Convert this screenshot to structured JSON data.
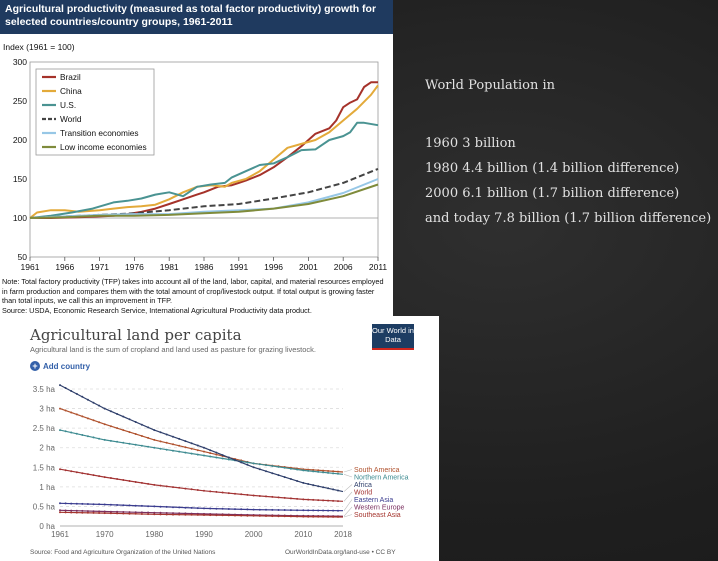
{
  "population": {
    "heading": "World Population in",
    "lines": [
      "1960 3 billion",
      "1980 4.4 billion (1.4 billion difference)",
      "2000 6.1 billion (1.7 billion difference)",
      "and today 7.8 billion (1.7 billion difference)"
    ]
  },
  "chart1": {
    "title": "Agricultural productivity (measured as total factor productivity) growth for selected countries/country groups, 1961-2011",
    "note": "Note: Total factory productivity (TFP) takes into account all of the land, labor, capital, and material resources employed in farm production and compares them with the total amount of crop/livestock output. If total output is growing faster than total inputs, we call this an improvement in TFP.",
    "source": "Source: USDA, Economic Research Service, International Agricultural Productivity data product."
  },
  "chart2": {
    "add_country": "Add country",
    "logo": "Our World in Data",
    "source": "Source: Food and Agriculture Organization of the United Nations",
    "credit": "OurWorldInData.org/land-use • CC BY"
  },
  "chart_data": [
    {
      "type": "line",
      "title": "Agricultural productivity (measured as total factor productivity) growth for selected countries/country groups, 1961-2011",
      "ylabel": "Index (1961 = 100)",
      "xlabel": "",
      "xlim": [
        1961,
        2011
      ],
      "ylim": [
        50,
        300
      ],
      "xticks": [
        1961,
        1966,
        1971,
        1976,
        1981,
        1986,
        1991,
        1996,
        2001,
        2006,
        2011
      ],
      "yticks": [
        50,
        100,
        150,
        200,
        250,
        300
      ],
      "legend_position": "top-left",
      "series": [
        {
          "name": "Brazil",
          "color": "#a5322a",
          "dash": false,
          "points": [
            [
              1961,
              100
            ],
            [
              1964,
              100
            ],
            [
              1968,
              101
            ],
            [
              1971,
              102
            ],
            [
              1973,
              103
            ],
            [
              1975,
              105
            ],
            [
              1977,
              108
            ],
            [
              1979,
              112
            ],
            [
              1981,
              118
            ],
            [
              1983,
              124
            ],
            [
              1985,
              130
            ],
            [
              1986,
              133
            ],
            [
              1988,
              140
            ],
            [
              1990,
              142
            ],
            [
              1991,
              145
            ],
            [
              1992,
              148
            ],
            [
              1994,
              155
            ],
            [
              1996,
              165
            ],
            [
              1998,
              178
            ],
            [
              2000,
              192
            ],
            [
              2002,
              208
            ],
            [
              2004,
              215
            ],
            [
              2005,
              225
            ],
            [
              2006,
              242
            ],
            [
              2007,
              248
            ],
            [
              2008,
              252
            ],
            [
              2009,
              268
            ],
            [
              2010,
              274
            ],
            [
              2011,
              274
            ]
          ]
        },
        {
          "name": "China",
          "color": "#e3aa3a",
          "dash": false,
          "points": [
            [
              1961,
              100
            ],
            [
              1962,
              107
            ],
            [
              1964,
              110
            ],
            [
              1966,
              110
            ],
            [
              1968,
              108
            ],
            [
              1971,
              110
            ],
            [
              1973,
              112
            ],
            [
              1975,
              114
            ],
            [
              1977,
              115
            ],
            [
              1979,
              117
            ],
            [
              1981,
              124
            ],
            [
              1983,
              133
            ],
            [
              1985,
              140
            ],
            [
              1987,
              142
            ],
            [
              1989,
              140
            ],
            [
              1990,
              145
            ],
            [
              1992,
              150
            ],
            [
              1994,
              160
            ],
            [
              1996,
              175
            ],
            [
              1998,
              190
            ],
            [
              2000,
              195
            ],
            [
              2002,
              200
            ],
            [
              2004,
              210
            ],
            [
              2006,
              225
            ],
            [
              2008,
              240
            ],
            [
              2010,
              258
            ],
            [
              2011,
              270
            ]
          ]
        },
        {
          "name": "U.S.",
          "color": "#4a9392",
          "dash": false,
          "points": [
            [
              1961,
              100
            ],
            [
              1964,
              103
            ],
            [
              1967,
              107
            ],
            [
              1970,
              112
            ],
            [
              1973,
              120
            ],
            [
              1975,
              122
            ],
            [
              1977,
              125
            ],
            [
              1979,
              130
            ],
            [
              1981,
              133
            ],
            [
              1983,
              128
            ],
            [
              1985,
              140
            ],
            [
              1987,
              143
            ],
            [
              1989,
              145
            ],
            [
              1990,
              152
            ],
            [
              1992,
              160
            ],
            [
              1994,
              168
            ],
            [
              1996,
              170
            ],
            [
              1998,
              178
            ],
            [
              2000,
              187
            ],
            [
              2002,
              188
            ],
            [
              2004,
              200
            ],
            [
              2006,
              205
            ],
            [
              2007,
              210
            ],
            [
              2008,
              222
            ],
            [
              2009,
              222
            ],
            [
              2011,
              219
            ]
          ]
        },
        {
          "name": "World",
          "color": "#444444",
          "dash": true,
          "points": [
            [
              1961,
              100
            ],
            [
              1966,
              102
            ],
            [
              1971,
              104
            ],
            [
              1976,
              106
            ],
            [
              1981,
              110
            ],
            [
              1986,
              115
            ],
            [
              1991,
              118
            ],
            [
              1996,
              125
            ],
            [
              2001,
              133
            ],
            [
              2006,
              145
            ],
            [
              2011,
              163
            ]
          ]
        },
        {
          "name": "Transition economies",
          "color": "#97c7e6",
          "dash": false,
          "points": [
            [
              1961,
              100
            ],
            [
              1966,
              102
            ],
            [
              1971,
              104
            ],
            [
              1976,
              105
            ],
            [
              1981,
              105
            ],
            [
              1986,
              108
            ],
            [
              1991,
              110
            ],
            [
              1996,
              112
            ],
            [
              2001,
              120
            ],
            [
              2006,
              132
            ],
            [
              2011,
              150
            ]
          ]
        },
        {
          "name": "Low income economies",
          "color": "#7f8b3b",
          "dash": false,
          "points": [
            [
              1961,
              100
            ],
            [
              1966,
              101
            ],
            [
              1971,
              103
            ],
            [
              1976,
              103
            ],
            [
              1981,
              104
            ],
            [
              1986,
              106
            ],
            [
              1991,
              108
            ],
            [
              1996,
              112
            ],
            [
              2001,
              118
            ],
            [
              2006,
              128
            ],
            [
              2011,
              143
            ]
          ]
        }
      ]
    },
    {
      "type": "line",
      "title": "Agricultural land per capita",
      "subtitle": "Agricultural land is the sum of cropland and land used as pasture for grazing livestock.",
      "xlabel": "",
      "ylabel": "",
      "xlim": [
        1961,
        2018
      ],
      "ylim": [
        0,
        3.5
      ],
      "xticks": [
        1961,
        1970,
        1980,
        1990,
        2000,
        2010,
        2018
      ],
      "yticks": [
        0,
        0.5,
        1,
        1.5,
        2,
        2.5,
        3,
        3.5
      ],
      "ytick_labels": [
        "0 ha",
        "0.5 ha",
        "1 ha",
        "1.5 ha",
        "2 ha",
        "2.5 ha",
        "3 ha",
        "3.5 ha"
      ],
      "legend_position": "right",
      "series": [
        {
          "name": "South America",
          "color": "#b0522e",
          "points": [
            [
              1961,
              3.0
            ],
            [
              1970,
              2.6
            ],
            [
              1980,
              2.2
            ],
            [
              1990,
              1.9
            ],
            [
              2000,
              1.6
            ],
            [
              2010,
              1.45
            ],
            [
              2018,
              1.38
            ]
          ]
        },
        {
          "name": "Northern America",
          "color": "#3e8b91",
          "points": [
            [
              1961,
              2.45
            ],
            [
              1970,
              2.2
            ],
            [
              1980,
              2.0
            ],
            [
              1990,
              1.8
            ],
            [
              2000,
              1.6
            ],
            [
              2010,
              1.42
            ],
            [
              2018,
              1.32
            ]
          ]
        },
        {
          "name": "Africa",
          "color": "#2f3f6b",
          "points": [
            [
              1961,
              3.6
            ],
            [
              1970,
              3.0
            ],
            [
              1980,
              2.45
            ],
            [
              1990,
              2.0
            ],
            [
              2000,
              1.5
            ],
            [
              2010,
              1.1
            ],
            [
              2018,
              0.88
            ]
          ]
        },
        {
          "name": "World",
          "color": "#a33434",
          "points": [
            [
              1961,
              1.45
            ],
            [
              1970,
              1.25
            ],
            [
              1980,
              1.05
            ],
            [
              1990,
              0.9
            ],
            [
              2000,
              0.78
            ],
            [
              2010,
              0.68
            ],
            [
              2018,
              0.63
            ]
          ]
        },
        {
          "name": "Eastern Asia",
          "color": "#3a3c8f",
          "points": [
            [
              1961,
              0.58
            ],
            [
              1970,
              0.55
            ],
            [
              1980,
              0.5
            ],
            [
              1990,
              0.45
            ],
            [
              2000,
              0.42
            ],
            [
              2010,
              0.4
            ],
            [
              2018,
              0.39
            ]
          ]
        },
        {
          "name": "Western Europe",
          "color": "#7a2f5f",
          "points": [
            [
              1961,
              0.4
            ],
            [
              1970,
              0.37
            ],
            [
              1980,
              0.34
            ],
            [
              1990,
              0.31
            ],
            [
              2000,
              0.28
            ],
            [
              2010,
              0.26
            ],
            [
              2018,
              0.25
            ]
          ]
        },
        {
          "name": "Southeast Asia",
          "color": "#a5352e",
          "points": [
            [
              1961,
              0.35
            ],
            [
              1970,
              0.33
            ],
            [
              1980,
              0.3
            ],
            [
              1990,
              0.28
            ],
            [
              2000,
              0.26
            ],
            [
              2010,
              0.24
            ],
            [
              2018,
              0.23
            ]
          ]
        }
      ]
    }
  ]
}
